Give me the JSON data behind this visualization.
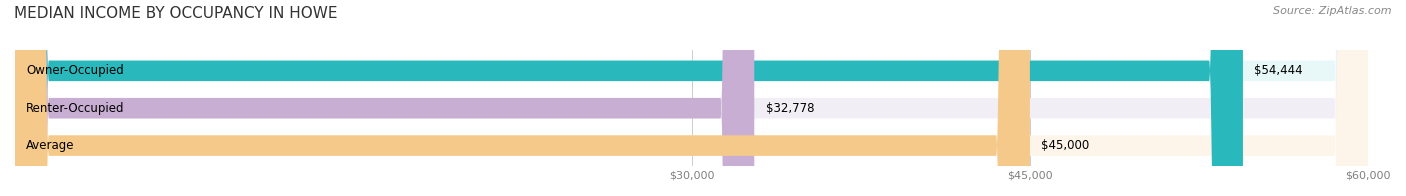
{
  "title": "MEDIAN INCOME BY OCCUPANCY IN HOWE",
  "source": "Source: ZipAtlas.com",
  "categories": [
    "Owner-Occupied",
    "Renter-Occupied",
    "Average"
  ],
  "values": [
    54444,
    32778,
    45000
  ],
  "labels": [
    "$54,444",
    "$32,778",
    "$45,000"
  ],
  "bar_colors": [
    "#29b8bc",
    "#c9aed4",
    "#f5c98a"
  ],
  "bar_bg_colors": [
    "#e8f8f8",
    "#f2eef5",
    "#fdf5ea"
  ],
  "xlim": [
    0,
    60000
  ],
  "xticks": [
    30000,
    45000,
    60000
  ],
  "xtick_labels": [
    "$30,000",
    "$45,000",
    "$60,000"
  ],
  "background_color": "#ffffff",
  "title_fontsize": 11,
  "source_fontsize": 8,
  "label_fontsize": 8.5,
  "bar_label_fontsize": 8.5,
  "bar_height": 0.55,
  "figsize": [
    14.06,
    1.96
  ],
  "dpi": 100
}
